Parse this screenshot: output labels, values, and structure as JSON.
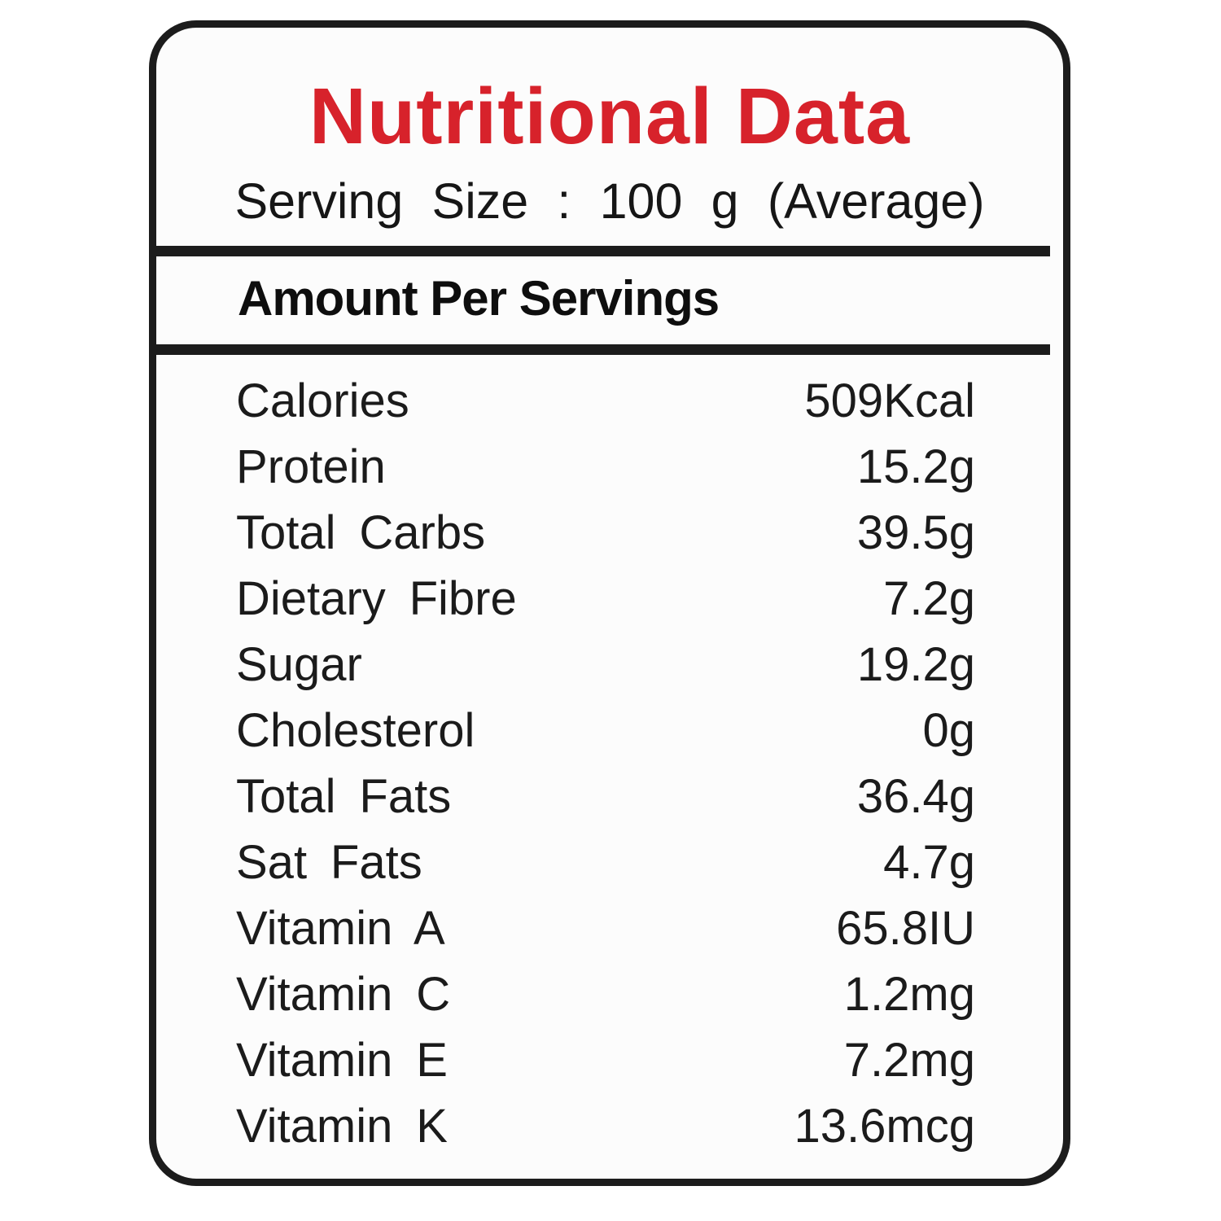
{
  "label": {
    "title": "Nutritional Data",
    "serving_size": "Serving Size : 100 g (Average)",
    "section_header": "Amount Per Servings",
    "rows": [
      {
        "name": "Calories",
        "value": "509Kcal"
      },
      {
        "name": "Protein",
        "value": "15.2g"
      },
      {
        "name": "Total Carbs",
        "value": "39.5g"
      },
      {
        "name": "Dietary Fibre",
        "value": "7.2g"
      },
      {
        "name": "Sugar",
        "value": "19.2g"
      },
      {
        "name": "Cholesterol",
        "value": "0g"
      },
      {
        "name": "Total Fats",
        "value": "36.4g"
      },
      {
        "name": "Sat Fats",
        "value": "4.7g"
      },
      {
        "name": "Vitamin A",
        "value": "65.8IU"
      },
      {
        "name": "Vitamin C",
        "value": "1.2mg"
      },
      {
        "name": "Vitamin E",
        "value": "7.2mg"
      },
      {
        "name": "Vitamin K",
        "value": "13.6mcg"
      }
    ],
    "colors": {
      "title_red": "#d7222b",
      "text_black": "#161616",
      "border_black": "#1c1c1c",
      "card_background": "#fcfcfc"
    }
  }
}
